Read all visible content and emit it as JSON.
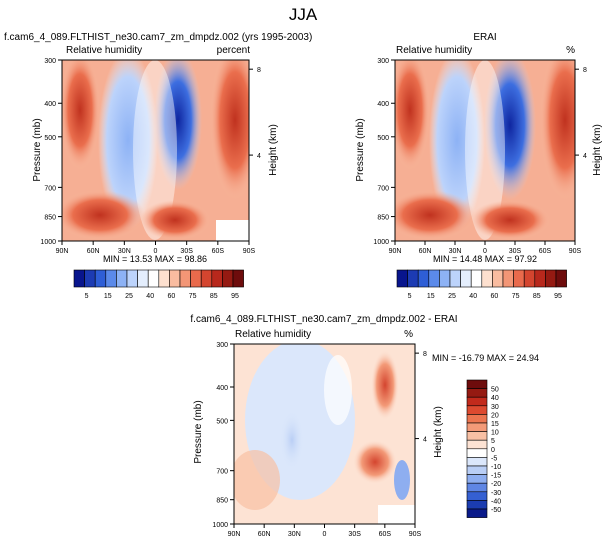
{
  "figure": {
    "title": "JJA"
  },
  "chart_data": [
    {
      "type": "heatmap",
      "panel": "model",
      "title_left": "f.cam6_4_089.FLTHIST_ne30.cam7_zm_dmpdz.002 (yrs 1995-2003)",
      "subtitle_left": "Relative humidity",
      "subtitle_right": "percent",
      "ylabel": "Pressure (mb)",
      "ylabel_right": "Height (km)",
      "x_ticks": [
        "90N",
        "60N",
        "30N",
        "0",
        "30S",
        "60S",
        "90S"
      ],
      "y_ticks": [
        "300",
        "400",
        "500",
        "700",
        "850",
        "1000"
      ],
      "y_ticks_right": [
        "8",
        "4"
      ],
      "stats": "MIN = 13.53  MAX = 98.86",
      "min": 13.53,
      "max": 98.86,
      "xlim": [
        90,
        -90
      ],
      "ylim": [
        1000,
        300
      ],
      "colorbar_labels": [
        "5",
        "15",
        "25",
        "40",
        "60",
        "75",
        "85",
        "95"
      ],
      "colorbar_colors": [
        "#08158d",
        "#1c3bb3",
        "#2e5ed6",
        "#5b8aea",
        "#8db2f5",
        "#bcd3fb",
        "#e4eefd",
        "#ffffff",
        "#fde0cf",
        "#f9bca0",
        "#f39676",
        "#e96a4c",
        "#d4452f",
        "#b8281c",
        "#951a12",
        "#6e0c0c"
      ]
    },
    {
      "type": "heatmap",
      "panel": "obs",
      "title_center": "ERAI",
      "subtitle_left": "Relative humidity",
      "subtitle_right": "%",
      "ylabel": "Pressure (mb)",
      "ylabel_right": "Height (km)",
      "x_ticks": [
        "90N",
        "60N",
        "30N",
        "0",
        "30S",
        "60S",
        "90S"
      ],
      "y_ticks": [
        "300",
        "400",
        "500",
        "700",
        "850",
        "1000"
      ],
      "y_ticks_right": [
        "8",
        "4"
      ],
      "stats": "MIN = 14.48  MAX = 97.92",
      "min": 14.48,
      "max": 97.92,
      "xlim": [
        90,
        -90
      ],
      "ylim": [
        1000,
        300
      ],
      "colorbar_labels": [
        "5",
        "15",
        "25",
        "40",
        "60",
        "75",
        "85",
        "95"
      ]
    },
    {
      "type": "heatmap",
      "panel": "difference",
      "title_center": "f.cam6_4_089.FLTHIST_ne30.cam7_zm_dmpdz.002 - ERAI",
      "subtitle_left": "Relative humidity",
      "subtitle_right": "%",
      "ylabel": "Pressure (mb)",
      "ylabel_right": "Height (km)",
      "x_ticks": [
        "90N",
        "60N",
        "30N",
        "0",
        "30S",
        "60S",
        "90S"
      ],
      "y_ticks": [
        "300",
        "400",
        "500",
        "700",
        "850",
        "1000"
      ],
      "y_ticks_right": [
        "8",
        "4"
      ],
      "stats": "MIN = -16.79  MAX = 24.94",
      "min": -16.79,
      "max": 24.94,
      "xlim": [
        90,
        -90
      ],
      "ylim": [
        1000,
        300
      ],
      "colorbar_labels": [
        "50",
        "40",
        "30",
        "20",
        "15",
        "10",
        "5",
        "0",
        "-5",
        "-10",
        "-15",
        "-20",
        "-30",
        "-40",
        "-50"
      ],
      "colorbar_colors": [
        "#6e0c0c",
        "#951a12",
        "#c22a1c",
        "#dd4a30",
        "#ec7550",
        "#f39a78",
        "#f8c0a4",
        "#fde3d4",
        "#ffffff",
        "#dbe7fb",
        "#b9cef5",
        "#8eaef0",
        "#5f86e4",
        "#3560d2",
        "#1b3cb0",
        "#0a1a8a"
      ]
    }
  ]
}
